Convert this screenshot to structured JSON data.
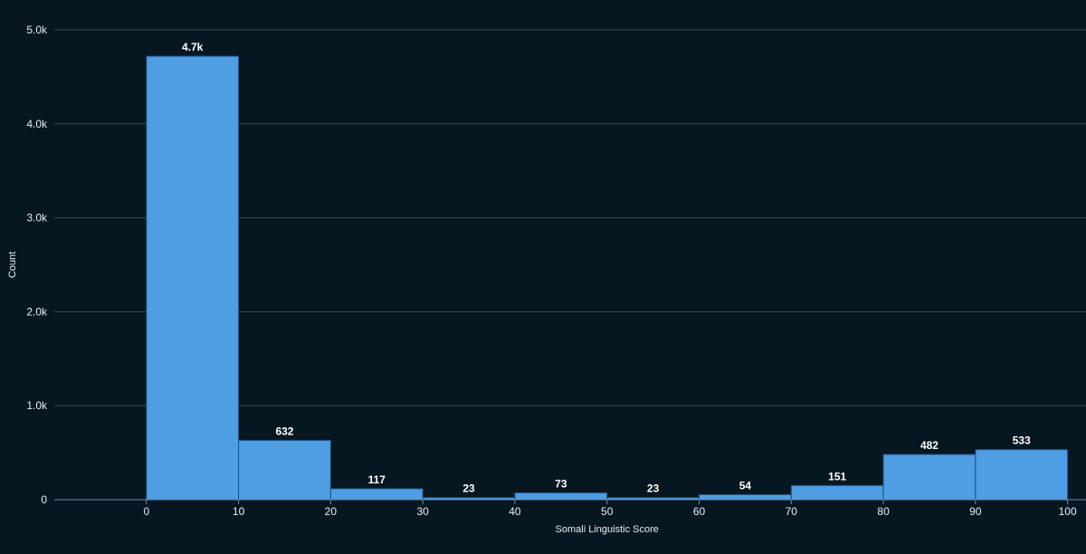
{
  "chart_data": {
    "type": "bar",
    "title": "",
    "xlabel": "Somali Linguistic Score",
    "ylabel": "Count",
    "bins": [
      [
        0,
        10
      ],
      [
        10,
        20
      ],
      [
        20,
        30
      ],
      [
        30,
        40
      ],
      [
        40,
        50
      ],
      [
        50,
        60
      ],
      [
        60,
        70
      ],
      [
        70,
        80
      ],
      [
        80,
        90
      ],
      [
        90,
        100
      ]
    ],
    "values": [
      4720,
      632,
      117,
      23,
      73,
      23,
      54,
      151,
      482,
      533
    ],
    "data_labels": [
      "4.7k",
      "632",
      "117",
      "23",
      "73",
      "23",
      "54",
      "151",
      "482",
      "533"
    ],
    "x_ticks": [
      "0",
      "10",
      "20",
      "30",
      "40",
      "50",
      "60",
      "70",
      "80",
      "90",
      "100"
    ],
    "y_ticks": [
      "0",
      "1.0k",
      "2.0k",
      "3.0k",
      "4.0k",
      "5.0k"
    ],
    "ylim": [
      0,
      5000
    ],
    "xlim": [
      -10,
      102
    ],
    "grid": true,
    "legend": "none",
    "colors": {
      "background": "#071722",
      "bar": "#4f9de3",
      "grid": "#3a4a58",
      "text": "#e6edf3"
    }
  }
}
